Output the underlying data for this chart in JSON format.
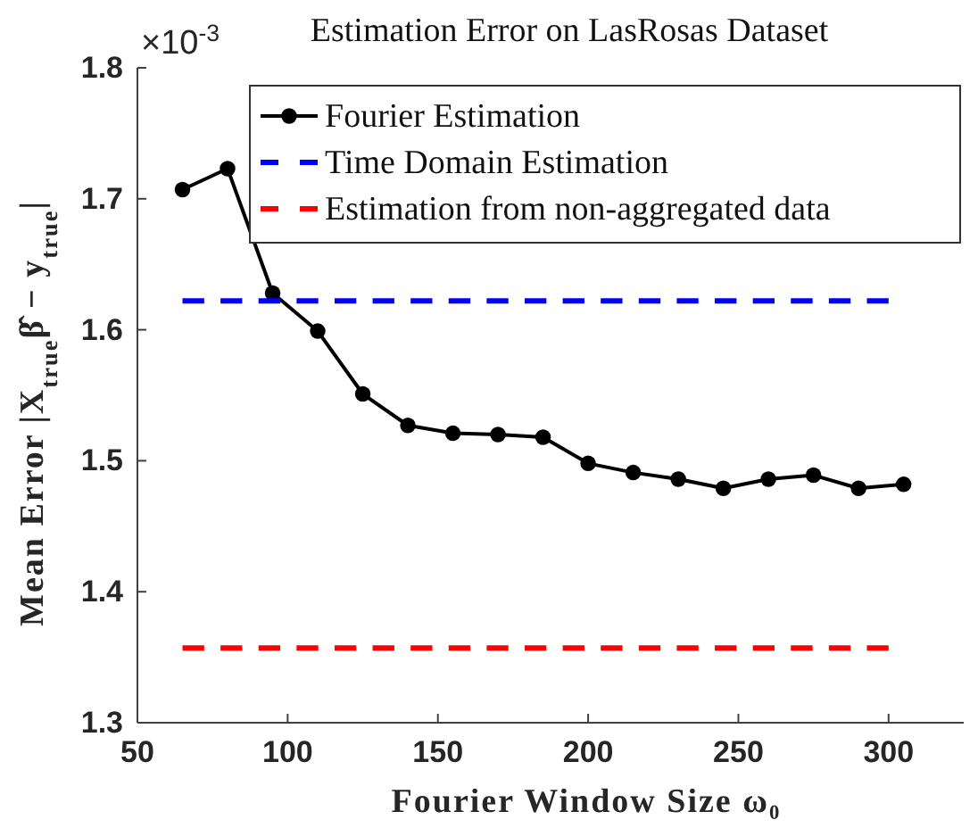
{
  "chart_data": {
    "type": "line",
    "title": "Estimation Error on LasRosas Dataset",
    "xlabel": "Fourier Window Size  ω₀",
    "ylabel": "Mean Error  |X$_{true}$β̂ − y$_{true}$|",
    "annotations": [
      "×10$^{-3}$"
    ],
    "xlim": [
      50,
      325
    ],
    "xticks": [
      50,
      100,
      150,
      200,
      250,
      300
    ],
    "ylim": [
      1.3,
      1.8
    ],
    "yticks": [
      1.3,
      1.4,
      1.5,
      1.6,
      1.7,
      1.8
    ],
    "grid": false,
    "legend": "top right",
    "series": [
      {
        "name": "Fourier Estimation",
        "color": "#000000",
        "marker": "circle",
        "line_style": "solid",
        "x": [
          65,
          80,
          95,
          110,
          125,
          140,
          155,
          170,
          185,
          200,
          215,
          230,
          245,
          260,
          275,
          290,
          305
        ],
        "values": [
          1.707,
          1.723,
          1.628,
          1.599,
          1.551,
          1.527,
          1.521,
          1.52,
          1.518,
          1.498,
          1.491,
          1.486,
          1.479,
          1.486,
          1.489,
          1.479,
          1.482
        ]
      },
      {
        "name": "Time Domain Estimation",
        "color": "#0000ff",
        "marker": "none",
        "line_style": "dashed",
        "x": [
          65,
          300
        ],
        "values": [
          1.622,
          1.622
        ]
      },
      {
        "name": "Estimation from non-aggregated data",
        "color": "#ff0000",
        "marker": "none",
        "line_style": "dashed",
        "x": [
          65,
          300
        ],
        "values": [
          1.357,
          1.357
        ]
      }
    ]
  }
}
